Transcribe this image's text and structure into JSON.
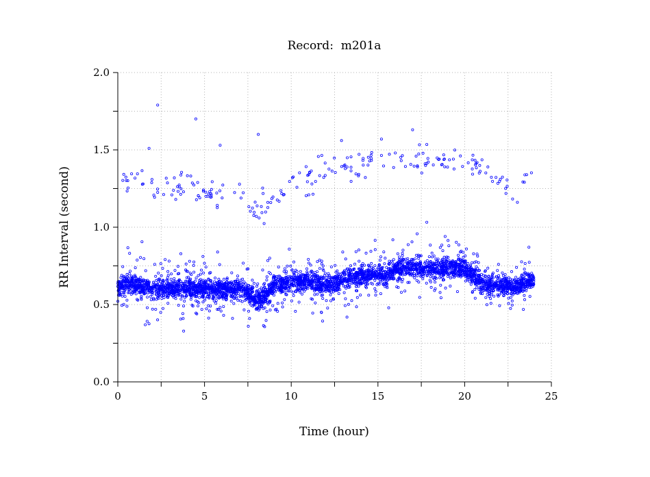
{
  "chart_data": {
    "type": "scatter",
    "title": "Record:  m201a",
    "xlabel": "Time (hour)",
    "ylabel": "RR Interval (second)",
    "xlim": [
      0,
      25
    ],
    "ylim": [
      0,
      2.0
    ],
    "xticks": [
      "0",
      "5",
      "10",
      "15",
      "20",
      "25"
    ],
    "xtick_values": [
      0,
      5,
      10,
      15,
      20,
      25
    ],
    "yticks": [
      "0.0",
      "0.5",
      "1.0",
      "1.5",
      "2.0"
    ],
    "ytick_values": [
      0,
      0.5,
      1.0,
      1.5,
      2.0
    ],
    "grid": true,
    "grid_x_step": 2.5,
    "grid_y_step": 0.25,
    "marker_color": "#0000ff",
    "main_band_trend": [
      [
        0,
        0.62
      ],
      [
        1,
        0.63
      ],
      [
        2,
        0.6
      ],
      [
        3,
        0.6
      ],
      [
        4,
        0.6
      ],
      [
        5,
        0.6
      ],
      [
        6,
        0.6
      ],
      [
        7,
        0.6
      ],
      [
        7.5,
        0.58
      ],
      [
        8,
        0.52
      ],
      [
        8.5,
        0.56
      ],
      [
        9,
        0.63
      ],
      [
        10,
        0.65
      ],
      [
        11,
        0.65
      ],
      [
        12,
        0.62
      ],
      [
        13,
        0.66
      ],
      [
        14,
        0.69
      ],
      [
        15,
        0.7
      ],
      [
        15.5,
        0.68
      ],
      [
        16,
        0.73
      ],
      [
        17,
        0.74
      ],
      [
        18,
        0.73
      ],
      [
        19,
        0.74
      ],
      [
        20,
        0.74
      ],
      [
        21,
        0.64
      ],
      [
        22,
        0.62
      ],
      [
        23,
        0.62
      ],
      [
        24,
        0.66
      ]
    ],
    "upper_cluster_trend": [
      [
        0,
        1.3
      ],
      [
        2,
        1.27
      ],
      [
        4,
        1.25
      ],
      [
        6,
        1.23
      ],
      [
        7,
        1.2
      ],
      [
        8,
        1.12
      ],
      [
        9,
        1.2
      ],
      [
        10,
        1.3
      ],
      [
        12,
        1.35
      ],
      [
        13,
        1.38
      ],
      [
        14,
        1.42
      ],
      [
        15,
        1.45
      ],
      [
        17,
        1.45
      ],
      [
        19,
        1.42
      ],
      [
        20,
        1.45
      ],
      [
        21,
        1.35
      ],
      [
        22,
        1.28
      ],
      [
        23,
        1.2
      ],
      [
        24,
        1.35
      ]
    ],
    "outliers": [
      [
        1.8,
        1.51
      ],
      [
        2.3,
        1.79
      ],
      [
        4.5,
        1.7
      ],
      [
        5.9,
        1.53
      ],
      [
        8.1,
        1.6
      ],
      [
        12.9,
        1.56
      ],
      [
        15.2,
        1.57
      ],
      [
        17,
        1.63
      ]
    ]
  }
}
